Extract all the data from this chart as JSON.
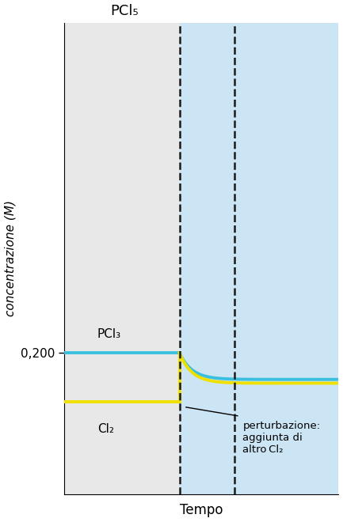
{
  "title_top": "PCl₅",
  "ylabel": "concentrazione (M)",
  "xlabel": "Tempo",
  "ytick_label": "0,200",
  "ytick_value": 0.2,
  "bg_color_left": "#e8e8e8",
  "bg_color_right": "#cce5f5",
  "dashed_line_color": "#1a1a1a",
  "pcl3_color": "#3bbfdf",
  "cl2_color": "#f0e000",
  "pcl3_label": "PCl₃",
  "cl2_label": "Cl₂",
  "annotation_line1": "perturbazione:",
  "annotation_line2": "aggiunta di",
  "annotation_line3": "altro Cl₂",
  "t_eq1": 0.42,
  "t_perturb": 0.62,
  "pcl3_init": 0.2,
  "cl2_init": 0.148,
  "pcl3_new_eq": 0.172,
  "cl2_new_eq": 0.168,
  "cl2_jump": 0.2,
  "tau": 0.045,
  "ylim_low": 0.05,
  "ylim_high": 0.55,
  "xlim_low": 0.0,
  "xlim_high": 1.0
}
